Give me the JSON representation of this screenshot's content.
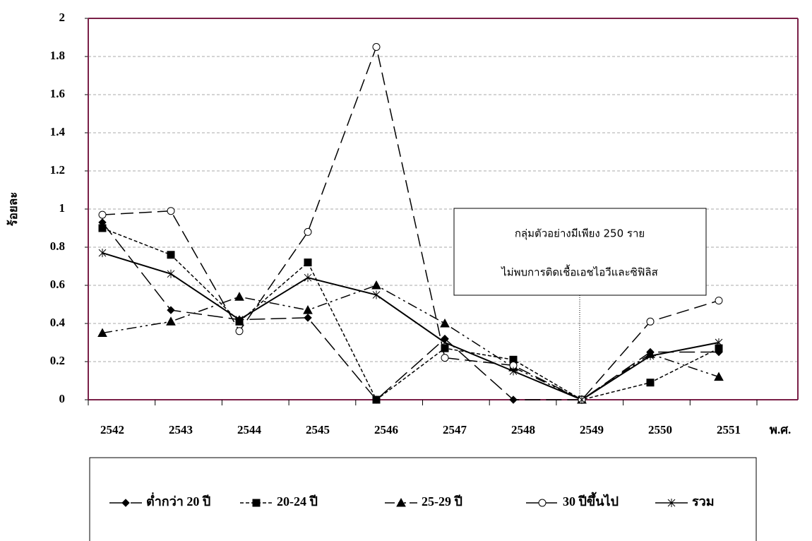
{
  "chart_data": {
    "type": "line",
    "y_label": "ร้อยละ",
    "x_label": "พ.ศ.",
    "categories": [
      "2542",
      "2543",
      "2544",
      "2545",
      "2546",
      "2547",
      "2548",
      "2549",
      "2550",
      "2551"
    ],
    "series": [
      {
        "name": "ต่ำกว่า 20 ปี",
        "color": "#000000",
        "values": [
          0.93,
          0.47,
          0.42,
          0.43,
          0,
          0.32,
          0,
          0,
          0.25,
          0.25
        ]
      },
      {
        "name": "20-24 ปี",
        "color": "#000000",
        "values": [
          0.9,
          0.76,
          0.41,
          0.72,
          0,
          0.27,
          0.21,
          0,
          0.09,
          0.27
        ]
      },
      {
        "name": "25-29 ปี",
        "color": "#000000",
        "values": [
          0.35,
          0.41,
          0.54,
          0.47,
          0.6,
          0.4,
          0.17,
          0,
          0.24,
          0.12
        ]
      },
      {
        "name": "30 ปีขึ้นไป",
        "color": "#000000",
        "values": [
          0.97,
          0.99,
          0.36,
          0.88,
          1.85,
          0.22,
          0.18,
          0,
          0.41,
          0.52
        ]
      },
      {
        "name": "รวม",
        "color": "#000000",
        "values": [
          0.77,
          0.66,
          0.42,
          0.64,
          0.55,
          0.3,
          0.15,
          0,
          0.23,
          0.3
        ]
      }
    ],
    "ylim": [
      0,
      2
    ],
    "yticks": [
      0,
      0.2,
      0.4,
      0.6,
      0.8,
      1,
      1.2,
      1.4,
      1.6,
      1.8,
      2
    ],
    "grid": true,
    "annotation": {
      "lines": [
        "กลุ่มตัวอย่างมีเพียง 250 ราย",
        "ไม่พบการติดเชื้อเอชไอวีและซิฟิลิส"
      ],
      "category_index": 7
    }
  }
}
